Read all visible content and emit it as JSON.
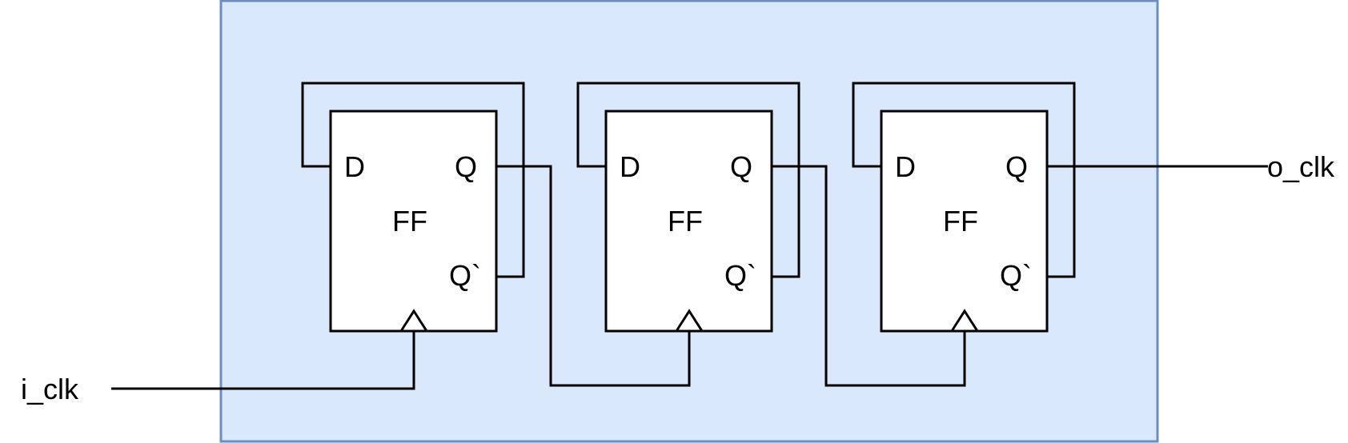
{
  "colors": {
    "container_fill": "#dae8fc",
    "container_stroke": "#6c8ebf",
    "line": "#000000",
    "box_fill": "#ffffff"
  },
  "signals": {
    "input_clock": "i_clk",
    "output_clock": "o_clk"
  },
  "flip_flops": [
    {
      "name": "FF",
      "d_label": "D",
      "q_label": "Q",
      "qbar_label": "Q`"
    },
    {
      "name": "FF",
      "d_label": "D",
      "q_label": "Q",
      "qbar_label": "Q`"
    },
    {
      "name": "FF",
      "d_label": "D",
      "q_label": "Q",
      "qbar_label": "Q`"
    }
  ]
}
